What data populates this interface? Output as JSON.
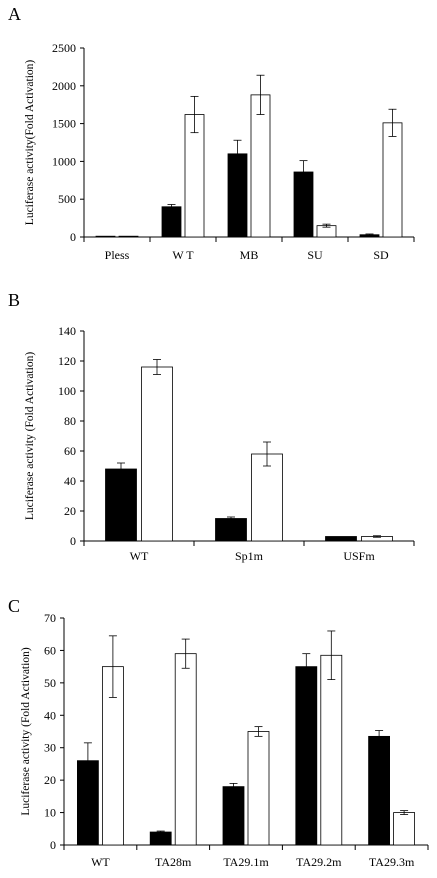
{
  "chart_data": [
    {
      "type": "bar",
      "panel": "A",
      "ylabel": "Luciferase activity(Fold Activation)",
      "ylim": [
        0,
        2500
      ],
      "yticks": [
        0,
        500,
        1000,
        1500,
        2000,
        2500
      ],
      "categories": [
        "Pless",
        "W T",
        "MB",
        "SU",
        "SD"
      ],
      "series": [
        {
          "color": "#000000",
          "values": [
            10,
            400,
            1100,
            860,
            30
          ],
          "errors": [
            0,
            30,
            180,
            150,
            10
          ]
        },
        {
          "color": "#ffffff",
          "values": [
            10,
            1620,
            1880,
            150,
            1510
          ],
          "errors": [
            0,
            240,
            260,
            20,
            180
          ]
        }
      ],
      "grid": false,
      "legend": "none"
    },
    {
      "type": "bar",
      "panel": "B",
      "ylabel": "Luciferase activity (Fold Activation)",
      "ylim": [
        0,
        140
      ],
      "yticks": [
        0,
        20,
        40,
        60,
        80,
        100,
        120,
        140
      ],
      "categories": [
        "WT",
        "Sp1m",
        "USFm"
      ],
      "series": [
        {
          "color": "#000000",
          "values": [
            48,
            15,
            3
          ],
          "errors": [
            4,
            1,
            0
          ]
        },
        {
          "color": "#ffffff",
          "values": [
            116,
            58,
            3
          ],
          "errors": [
            5,
            8,
            0.5
          ]
        }
      ],
      "grid": false,
      "legend": "none"
    },
    {
      "type": "bar",
      "panel": "C",
      "ylabel": "Luciferase activity (Fold Activation)",
      "ylim": [
        0,
        70
      ],
      "yticks": [
        0,
        10,
        20,
        30,
        40,
        50,
        60,
        70
      ],
      "categories": [
        "WT",
        "TA28m",
        "TA29.1m",
        "TA29.2m",
        "TA29.3m"
      ],
      "series": [
        {
          "color": "#000000",
          "values": [
            26,
            4,
            18,
            55,
            33.5
          ],
          "errors": [
            5.5,
            0.3,
            1,
            4,
            1.8
          ]
        },
        {
          "color": "#ffffff",
          "values": [
            55,
            59,
            35,
            58.5,
            10
          ],
          "errors": [
            9.5,
            4.5,
            1.5,
            7.5,
            0.6
          ]
        }
      ],
      "grid": false,
      "legend": "none"
    }
  ]
}
